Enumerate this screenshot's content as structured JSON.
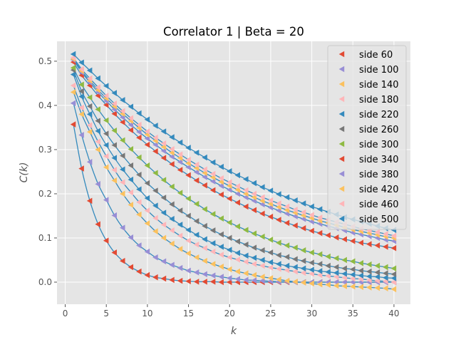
{
  "chart_data": {
    "type": "scatter",
    "title": "Correlator 1 | Beta = 20",
    "xlabel": "k",
    "ylabel": "C(k)",
    "xlim": [
      -1,
      42
    ],
    "ylim": [
      -0.05,
      0.545
    ],
    "x_ticks": [
      0,
      5,
      10,
      15,
      20,
      25,
      30,
      35,
      40
    ],
    "y_ticks": [
      0.0,
      0.1,
      0.2,
      0.3,
      0.4,
      0.5
    ],
    "x_tick_labels": [
      "0",
      "5",
      "10",
      "15",
      "20",
      "25",
      "30",
      "35",
      "40"
    ],
    "y_tick_labels": [
      "0.0",
      "0.1",
      "0.2",
      "0.3",
      "0.4",
      "0.5"
    ],
    "grid": true,
    "legend_position": "top-right",
    "fit_line_color": "#348ABD",
    "x": [
      1,
      2,
      3,
      4,
      5,
      6,
      7,
      8,
      9,
      10,
      11,
      12,
      13,
      14,
      15,
      16,
      17,
      18,
      19,
      20,
      21,
      22,
      23,
      24,
      25,
      26,
      27,
      28,
      29,
      30,
      31,
      32,
      33,
      34,
      35,
      36,
      37,
      38,
      39,
      40
    ],
    "series": [
      {
        "name": "side 60",
        "color": "#E24A33",
        "values": [
          0.357,
          0.257,
          0.184,
          0.131,
          0.094,
          0.067,
          0.048,
          0.034,
          0.024,
          0.016,
          0.011,
          0.008,
          0.005,
          0.003,
          0.002,
          0.001,
          0.001,
          0.001,
          0.0,
          0.0,
          0.0,
          0.0,
          0.0,
          0.0,
          0.0,
          0.0,
          0.0,
          0.0,
          0.0,
          0.0,
          0.0,
          0.0,
          0.0,
          0.0,
          0.0,
          0.0,
          0.0,
          0.0,
          0.0,
          0.0
        ]
      },
      {
        "name": "side 100",
        "color": "#988ED5",
        "values": [
          0.405,
          0.333,
          0.272,
          0.222,
          0.186,
          0.151,
          0.123,
          0.101,
          0.083,
          0.069,
          0.056,
          0.047,
          0.039,
          0.032,
          0.026,
          0.022,
          0.018,
          0.015,
          0.012,
          0.009,
          0.007,
          0.005,
          0.004,
          0.003,
          0.002,
          0.001,
          0.001,
          0.0,
          0.0,
          0.0,
          0.0,
          0.0,
          0.0,
          0.0,
          0.0,
          0.0,
          0.0,
          0.0,
          0.0,
          0.0
        ]
      },
      {
        "name": "side 140",
        "color": "#FBC15E",
        "values": [
          0.43,
          0.38,
          0.34,
          0.3,
          0.26,
          0.23,
          0.2,
          0.175,
          0.153,
          0.133,
          0.115,
          0.1,
          0.087,
          0.075,
          0.065,
          0.056,
          0.048,
          0.041,
          0.035,
          0.029,
          0.024,
          0.02,
          0.016,
          0.012,
          0.009,
          0.006,
          0.003,
          0.001,
          -0.001,
          -0.003,
          -0.005,
          -0.006,
          -0.008,
          -0.009,
          -0.01,
          -0.011,
          -0.012,
          -0.013,
          -0.014,
          -0.016
        ]
      },
      {
        "name": "side 180",
        "color": "#FFB5B8",
        "values": [
          0.445,
          0.395,
          0.355,
          0.318,
          0.285,
          0.254,
          0.226,
          0.203,
          0.181,
          0.162,
          0.145,
          0.13,
          0.117,
          0.105,
          0.094,
          0.085,
          0.077,
          0.069,
          0.062,
          0.056,
          0.051,
          0.046,
          0.041,
          0.037,
          0.033,
          0.03,
          0.027,
          0.024,
          0.021,
          0.019,
          0.016,
          0.014,
          0.012,
          0.01,
          0.008,
          0.007,
          0.005,
          0.003,
          0.002,
          0.0
        ]
      },
      {
        "name": "side 220",
        "color": "#348ABD",
        "values": [
          0.47,
          0.42,
          0.38,
          0.342,
          0.31,
          0.281,
          0.255,
          0.232,
          0.21,
          0.19,
          0.173,
          0.157,
          0.143,
          0.13,
          0.118,
          0.107,
          0.097,
          0.088,
          0.08,
          0.073,
          0.066,
          0.06,
          0.055,
          0.05,
          0.045,
          0.041,
          0.037,
          0.034,
          0.031,
          0.028,
          0.025,
          0.023,
          0.021,
          0.019,
          0.017,
          0.015,
          0.013,
          0.012,
          0.01,
          0.009
        ]
      },
      {
        "name": "side 260",
        "color": "#777777",
        "values": [
          0.48,
          0.432,
          0.398,
          0.365,
          0.336,
          0.31,
          0.286,
          0.264,
          0.243,
          0.224,
          0.207,
          0.191,
          0.176,
          0.162,
          0.15,
          0.138,
          0.127,
          0.117,
          0.108,
          0.1,
          0.092,
          0.085,
          0.078,
          0.072,
          0.067,
          0.061,
          0.057,
          0.052,
          0.048,
          0.044,
          0.041,
          0.037,
          0.034,
          0.031,
          0.029,
          0.026,
          0.024,
          0.022,
          0.02,
          0.018
        ]
      },
      {
        "name": "side 300",
        "color": "#8EBA42",
        "values": [
          0.485,
          0.447,
          0.418,
          0.391,
          0.366,
          0.343,
          0.321,
          0.301,
          0.282,
          0.264,
          0.247,
          0.231,
          0.216,
          0.202,
          0.189,
          0.177,
          0.165,
          0.154,
          0.144,
          0.135,
          0.126,
          0.118,
          0.11,
          0.103,
          0.096,
          0.089,
          0.083,
          0.078,
          0.072,
          0.067,
          0.063,
          0.058,
          0.054,
          0.05,
          0.047,
          0.043,
          0.04,
          0.037,
          0.034,
          0.031
        ]
      },
      {
        "name": "side 340",
        "color": "#E24A33",
        "values": [
          0.498,
          0.468,
          0.445,
          0.422,
          0.401,
          0.381,
          0.362,
          0.344,
          0.327,
          0.311,
          0.296,
          0.281,
          0.267,
          0.254,
          0.242,
          0.23,
          0.219,
          0.208,
          0.198,
          0.189,
          0.18,
          0.171,
          0.163,
          0.155,
          0.148,
          0.141,
          0.134,
          0.128,
          0.122,
          0.116,
          0.111,
          0.106,
          0.101,
          0.097,
          0.093,
          0.089,
          0.086,
          0.083,
          0.08,
          0.077
        ]
      },
      {
        "name": "side 380",
        "color": "#988ED5",
        "values": [
          0.503,
          0.475,
          0.452,
          0.43,
          0.41,
          0.391,
          0.373,
          0.356,
          0.34,
          0.325,
          0.311,
          0.297,
          0.284,
          0.272,
          0.26,
          0.249,
          0.238,
          0.228,
          0.218,
          0.209,
          0.2,
          0.192,
          0.184,
          0.176,
          0.169,
          0.162,
          0.155,
          0.149,
          0.143,
          0.137,
          0.132,
          0.127,
          0.122,
          0.117,
          0.112,
          0.108,
          0.104,
          0.1,
          0.096,
          0.093
        ]
      },
      {
        "name": "side 420",
        "color": "#FBC15E",
        "values": [
          0.505,
          0.478,
          0.456,
          0.435,
          0.416,
          0.398,
          0.381,
          0.365,
          0.349,
          0.334,
          0.32,
          0.306,
          0.293,
          0.281,
          0.269,
          0.258,
          0.247,
          0.237,
          0.227,
          0.218,
          0.209,
          0.2,
          0.192,
          0.184,
          0.177,
          0.17,
          0.163,
          0.157,
          0.151,
          0.145,
          0.139,
          0.134,
          0.129,
          0.124,
          0.119,
          0.115,
          0.111,
          0.107,
          0.103,
          0.1
        ]
      },
      {
        "name": "side 460",
        "color": "#FFB5B8",
        "values": [
          0.508,
          0.482,
          0.461,
          0.441,
          0.422,
          0.404,
          0.387,
          0.371,
          0.356,
          0.341,
          0.327,
          0.314,
          0.301,
          0.289,
          0.277,
          0.266,
          0.255,
          0.245,
          0.235,
          0.226,
          0.217,
          0.208,
          0.2,
          0.192,
          0.185,
          0.178,
          0.171,
          0.164,
          0.158,
          0.152,
          0.146,
          0.141,
          0.136,
          0.131,
          0.126,
          0.121,
          0.117,
          0.113,
          0.109,
          0.105
        ]
      },
      {
        "name": "side 500",
        "color": "#348ABD",
        "values": [
          0.516,
          0.497,
          0.479,
          0.461,
          0.444,
          0.428,
          0.412,
          0.397,
          0.382,
          0.368,
          0.354,
          0.341,
          0.328,
          0.316,
          0.304,
          0.293,
          0.282,
          0.271,
          0.261,
          0.251,
          0.242,
          0.233,
          0.224,
          0.215,
          0.207,
          0.199,
          0.192,
          0.185,
          0.178,
          0.171,
          0.165,
          0.159,
          0.153,
          0.147,
          0.142,
          0.137,
          0.132,
          0.127,
          0.122,
          0.118
        ]
      }
    ]
  }
}
